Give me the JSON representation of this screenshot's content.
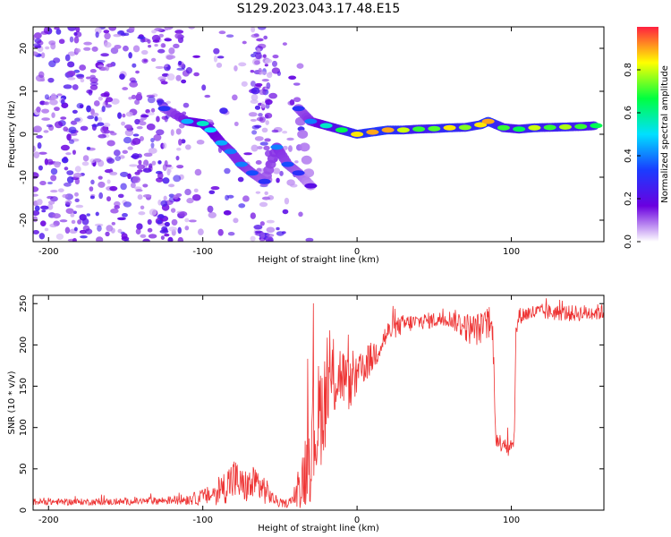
{
  "title": "S129.2023.043.17.48.E15",
  "chart_data": [
    {
      "type": "heatmap",
      "name": "spectrogram",
      "xlabel": "Height of straight line (km)",
      "ylabel": "Frequency (Hz)",
      "xlim": [
        -210,
        160
      ],
      "ylim": [
        -25,
        25
      ],
      "xticks": [
        -200,
        -100,
        0,
        100
      ],
      "yticks": [
        -20,
        -10,
        0,
        10,
        20
      ],
      "colorbar": {
        "label": "Normalized spectral amplitude",
        "range": [
          0,
          1
        ],
        "ticks": [
          "0.0",
          "0.2",
          "0.4",
          "0.6",
          "0.8"
        ],
        "colors": [
          "#ffffff",
          "#6a00e0",
          "#1a3cff",
          "#00e0ff",
          "#00ff40",
          "#ffff00",
          "#ff2040"
        ]
      },
      "ridge": [
        {
          "x": -125,
          "y": 6,
          "v": 0.3
        },
        {
          "x": -110,
          "y": 3,
          "v": 0.45
        },
        {
          "x": -100,
          "y": 2.5,
          "v": 0.55
        },
        {
          "x": -95,
          "y": 1,
          "v": 0.5
        },
        {
          "x": -88,
          "y": -2,
          "v": 0.45
        },
        {
          "x": -82,
          "y": -4,
          "v": 0.4
        },
        {
          "x": -75,
          "y": -7,
          "v": 0.4
        },
        {
          "x": -68,
          "y": -9,
          "v": 0.35
        },
        {
          "x": -60,
          "y": -11,
          "v": 0.3
        },
        {
          "x": -52,
          "y": -3,
          "v": 0.4
        },
        {
          "x": -45,
          "y": -7,
          "v": 0.35
        },
        {
          "x": -38,
          "y": -9,
          "v": 0.3
        },
        {
          "x": -30,
          "y": -12,
          "v": 0.2
        },
        {
          "x": -38,
          "y": 6,
          "v": 0.3
        },
        {
          "x": -30,
          "y": 3,
          "v": 0.4
        },
        {
          "x": -20,
          "y": 2,
          "v": 0.55
        },
        {
          "x": -10,
          "y": 1,
          "v": 0.65
        },
        {
          "x": 0,
          "y": 0,
          "v": 0.85
        },
        {
          "x": 10,
          "y": 0.5,
          "v": 0.9
        },
        {
          "x": 20,
          "y": 1,
          "v": 0.9
        },
        {
          "x": 30,
          "y": 1,
          "v": 0.8
        },
        {
          "x": 40,
          "y": 1.2,
          "v": 0.7
        },
        {
          "x": 50,
          "y": 1.3,
          "v": 0.72
        },
        {
          "x": 60,
          "y": 1.5,
          "v": 0.85
        },
        {
          "x": 70,
          "y": 1.6,
          "v": 0.75
        },
        {
          "x": 80,
          "y": 2.2,
          "v": 0.85
        },
        {
          "x": 85,
          "y": 3,
          "v": 0.9
        },
        {
          "x": 95,
          "y": 1.5,
          "v": 0.7
        },
        {
          "x": 105,
          "y": 1.2,
          "v": 0.65
        },
        {
          "x": 115,
          "y": 1.5,
          "v": 0.8
        },
        {
          "x": 125,
          "y": 1.6,
          "v": 0.7
        },
        {
          "x": 135,
          "y": 1.7,
          "v": 0.78
        },
        {
          "x": 145,
          "y": 1.8,
          "v": 0.7
        },
        {
          "x": 155,
          "y": 2,
          "v": 0.65
        }
      ]
    },
    {
      "type": "line",
      "name": "snr",
      "xlabel": "Height of straight line (km)",
      "ylabel": "SNR (10 * v/v)",
      "xlim": [
        -210,
        160
      ],
      "ylim": [
        0,
        260
      ],
      "xticks": [
        -200,
        -100,
        0,
        100
      ],
      "yticks": [
        0,
        50,
        100,
        150,
        200,
        250
      ],
      "color": "#ee3333",
      "x": [
        -210,
        -180,
        -150,
        -120,
        -105,
        -95,
        -90,
        -85,
        -80,
        -75,
        -70,
        -65,
        -60,
        -55,
        -50,
        -45,
        -40,
        -35,
        -30,
        -25,
        -20,
        -15,
        -10,
        -5,
        0,
        5,
        10,
        15,
        20,
        30,
        40,
        50,
        60,
        65,
        70,
        75,
        80,
        85,
        88,
        90,
        92,
        95,
        98,
        100,
        102,
        103,
        105,
        110,
        120,
        140,
        160
      ],
      "y": [
        10,
        10,
        10,
        12,
        14,
        18,
        22,
        30,
        38,
        30,
        28,
        32,
        25,
        15,
        8,
        8,
        15,
        40,
        80,
        110,
        140,
        160,
        165,
        150,
        160,
        175,
        185,
        200,
        215,
        225,
        228,
        230,
        232,
        228,
        222,
        218,
        220,
        225,
        215,
        90,
        80,
        85,
        75,
        80,
        90,
        215,
        235,
        238,
        240,
        238,
        240
      ],
      "noise": [
        4,
        4,
        4,
        5,
        8,
        12,
        16,
        22,
        28,
        20,
        22,
        24,
        18,
        8,
        5,
        5,
        10,
        40,
        70,
        70,
        60,
        50,
        40,
        30,
        25,
        22,
        20,
        18,
        14,
        12,
        10,
        10,
        10,
        15,
        18,
        20,
        20,
        18,
        20,
        12,
        12,
        12,
        12,
        12,
        10,
        10,
        10,
        10,
        10,
        10,
        10
      ]
    }
  ]
}
